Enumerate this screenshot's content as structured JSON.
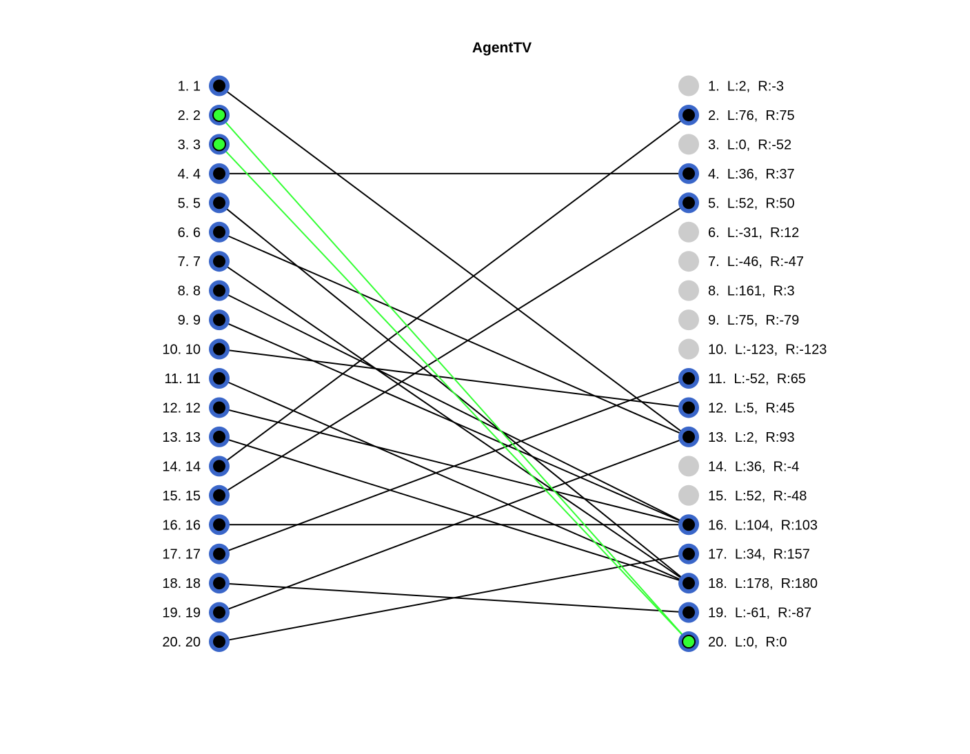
{
  "title": "AgentTV",
  "colors": {
    "node_ring": "#3a66c9",
    "node_core": "#000000",
    "node_inactive": "#cccccc",
    "highlight": "#33ff33",
    "edge": "#000000"
  },
  "left_nodes": [
    {
      "label": "1. 1",
      "highlight": false
    },
    {
      "label": "2. 2",
      "highlight": true
    },
    {
      "label": "3. 3",
      "highlight": true
    },
    {
      "label": "4. 4",
      "highlight": false
    },
    {
      "label": "5. 5",
      "highlight": false
    },
    {
      "label": "6. 6",
      "highlight": false
    },
    {
      "label": "7. 7",
      "highlight": false
    },
    {
      "label": "8. 8",
      "highlight": false
    },
    {
      "label": "9. 9",
      "highlight": false
    },
    {
      "label": "10. 10",
      "highlight": false
    },
    {
      "label": "11. 11",
      "highlight": false
    },
    {
      "label": "12. 12",
      "highlight": false
    },
    {
      "label": "13. 13",
      "highlight": false
    },
    {
      "label": "14. 14",
      "highlight": false
    },
    {
      "label": "15. 15",
      "highlight": false
    },
    {
      "label": "16. 16",
      "highlight": false
    },
    {
      "label": "17. 17",
      "highlight": false
    },
    {
      "label": "18. 18",
      "highlight": false
    },
    {
      "label": "19. 19",
      "highlight": false
    },
    {
      "label": "20. 20",
      "highlight": false
    }
  ],
  "right_nodes": [
    {
      "label": "1.  L:2,  R:-3",
      "active": false,
      "highlight": false
    },
    {
      "label": "2.  L:76,  R:75",
      "active": true,
      "highlight": false
    },
    {
      "label": "3.  L:0,  R:-52",
      "active": false,
      "highlight": false
    },
    {
      "label": "4.  L:36,  R:37",
      "active": true,
      "highlight": false
    },
    {
      "label": "5.  L:52,  R:50",
      "active": true,
      "highlight": false
    },
    {
      "label": "6.  L:-31,  R:12",
      "active": false,
      "highlight": false
    },
    {
      "label": "7.  L:-46,  R:-47",
      "active": false,
      "highlight": false
    },
    {
      "label": "8.  L:161,  R:3",
      "active": false,
      "highlight": false
    },
    {
      "label": "9.  L:75,  R:-79",
      "active": false,
      "highlight": false
    },
    {
      "label": "10.  L:-123,  R:-123",
      "active": false,
      "highlight": false
    },
    {
      "label": "11.  L:-52,  R:65",
      "active": true,
      "highlight": false
    },
    {
      "label": "12.  L:5,  R:45",
      "active": true,
      "highlight": false
    },
    {
      "label": "13.  L:2,  R:93",
      "active": true,
      "highlight": false
    },
    {
      "label": "14.  L:36,  R:-4",
      "active": false,
      "highlight": false
    },
    {
      "label": "15.  L:52,  R:-48",
      "active": false,
      "highlight": false
    },
    {
      "label": "16.  L:104,  R:103",
      "active": true,
      "highlight": false
    },
    {
      "label": "17.  L:34,  R:157",
      "active": true,
      "highlight": false
    },
    {
      "label": "18.  L:178,  R:180",
      "active": true,
      "highlight": false
    },
    {
      "label": "19.  L:-61,  R:-87",
      "active": true,
      "highlight": false
    },
    {
      "label": "20.  L:0,  R:0",
      "active": true,
      "highlight": true
    }
  ],
  "edges": [
    {
      "from": 1,
      "to": 13,
      "highlight": false
    },
    {
      "from": 2,
      "to": 20,
      "highlight": true
    },
    {
      "from": 3,
      "to": 20,
      "highlight": true
    },
    {
      "from": 4,
      "to": 4,
      "highlight": false
    },
    {
      "from": 5,
      "to": 18,
      "highlight": false
    },
    {
      "from": 6,
      "to": 13,
      "highlight": false
    },
    {
      "from": 7,
      "to": 18,
      "highlight": false
    },
    {
      "from": 8,
      "to": 16,
      "highlight": false
    },
    {
      "from": 9,
      "to": 16,
      "highlight": false
    },
    {
      "from": 10,
      "to": 12,
      "highlight": false
    },
    {
      "from": 11,
      "to": 18,
      "highlight": false
    },
    {
      "from": 12,
      "to": 16,
      "highlight": false
    },
    {
      "from": 13,
      "to": 18,
      "highlight": false
    },
    {
      "from": 14,
      "to": 2,
      "highlight": false
    },
    {
      "from": 15,
      "to": 5,
      "highlight": false
    },
    {
      "from": 16,
      "to": 16,
      "highlight": false
    },
    {
      "from": 17,
      "to": 11,
      "highlight": false
    },
    {
      "from": 18,
      "to": 19,
      "highlight": false
    },
    {
      "from": 19,
      "to": 13,
      "highlight": false
    },
    {
      "from": 20,
      "to": 17,
      "highlight": false
    }
  ]
}
